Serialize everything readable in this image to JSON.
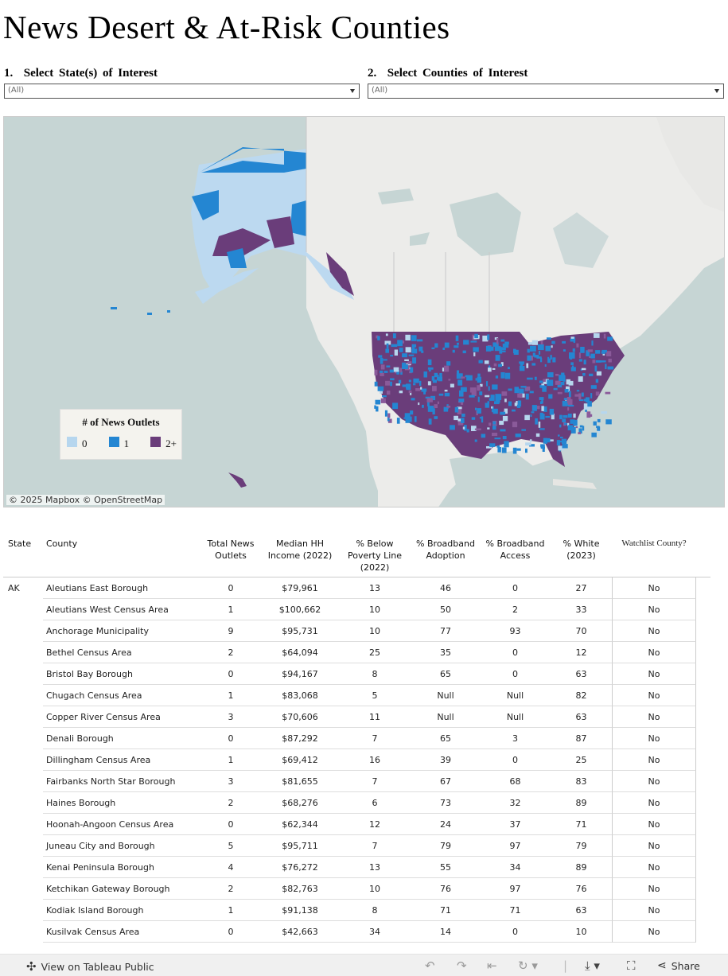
{
  "title": "News Desert & At-Risk Counties",
  "filters": [
    {
      "number": "1.",
      "label": "Select State(s) of Interest",
      "value": "(All)"
    },
    {
      "number": "2.",
      "label": "Select Counties of Interest",
      "value": "(All)"
    }
  ],
  "map": {
    "attribution": "© 2025 Mapbox  © OpenStreetMap",
    "legend": {
      "title": "# of News Outlets",
      "items": [
        {
          "label": "0",
          "color": "#b6d6ee"
        },
        {
          "label": "1",
          "color": "#2486d2"
        },
        {
          "label": "2+",
          "color": "#6a3d7a"
        }
      ]
    }
  },
  "table": {
    "headers": {
      "state": "State",
      "county": "County",
      "outlets": "Total News Outlets",
      "income": "Median HH Income (2022)",
      "poverty": "% Below Poverty Line (2022)",
      "bb_adoption": "% Broadband Adoption",
      "bb_access": "% Broadband Access",
      "white": "% White (2023)",
      "watchlist": "Watchlist County?"
    },
    "state_label": "AK",
    "rows": [
      [
        "Aleutians East Borough",
        "0",
        "$79,961",
        "13",
        "46",
        "0",
        "27",
        "No"
      ],
      [
        "Aleutians West Census Area",
        "1",
        "$100,662",
        "10",
        "50",
        "2",
        "33",
        "No"
      ],
      [
        "Anchorage Municipality",
        "9",
        "$95,731",
        "10",
        "77",
        "93",
        "70",
        "No"
      ],
      [
        "Bethel Census Area",
        "2",
        "$64,094",
        "25",
        "35",
        "0",
        "12",
        "No"
      ],
      [
        "Bristol Bay Borough",
        "0",
        "$94,167",
        "8",
        "65",
        "0",
        "63",
        "No"
      ],
      [
        "Chugach Census Area",
        "1",
        "$83,068",
        "5",
        "Null",
        "Null",
        "82",
        "No"
      ],
      [
        "Copper River Census Area",
        "3",
        "$70,606",
        "11",
        "Null",
        "Null",
        "63",
        "No"
      ],
      [
        "Denali Borough",
        "0",
        "$87,292",
        "7",
        "65",
        "3",
        "87",
        "No"
      ],
      [
        "Dillingham Census Area",
        "1",
        "$69,412",
        "16",
        "39",
        "0",
        "25",
        "No"
      ],
      [
        "Fairbanks North Star Borough",
        "3",
        "$81,655",
        "7",
        "67",
        "68",
        "83",
        "No"
      ],
      [
        "Haines Borough",
        "2",
        "$68,276",
        "6",
        "73",
        "32",
        "89",
        "No"
      ],
      [
        "Hoonah-Angoon Census Area",
        "0",
        "$62,344",
        "12",
        "24",
        "37",
        "71",
        "No"
      ],
      [
        "Juneau City and Borough",
        "5",
        "$95,711",
        "7",
        "79",
        "97",
        "79",
        "No"
      ],
      [
        "Kenai Peninsula Borough",
        "4",
        "$76,272",
        "13",
        "55",
        "34",
        "89",
        "No"
      ],
      [
        "Ketchikan Gateway Borough",
        "2",
        "$82,763",
        "10",
        "76",
        "97",
        "76",
        "No"
      ],
      [
        "Kodiak Island Borough",
        "1",
        "$91,138",
        "8",
        "71",
        "71",
        "63",
        "No"
      ],
      [
        "Kusilvak Census Area",
        "0",
        "$42,663",
        "34",
        "14",
        "0",
        "10",
        "No"
      ]
    ]
  },
  "footer": {
    "view_label": "View on Tableau Public",
    "share_label": "Share"
  }
}
